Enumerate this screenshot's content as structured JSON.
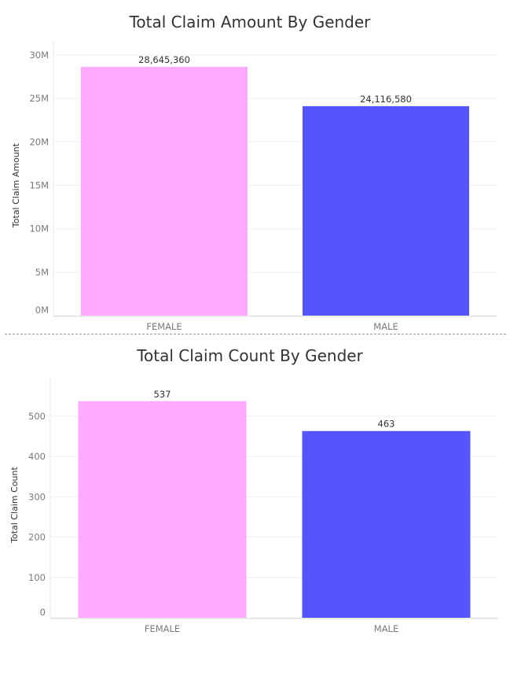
{
  "chart_data": [
    {
      "type": "bar",
      "title": "Total Claim Amount By Gender",
      "ylabel": "Total Claim Amount",
      "xlabel": "",
      "categories": [
        "FEMALE",
        "MALE"
      ],
      "values": [
        28645360,
        24116580
      ],
      "value_labels": [
        "28,645,360",
        "24,116,580"
      ],
      "colors": [
        "#ffaaff",
        "#5555ff"
      ],
      "ylim": [
        0,
        30000000
      ],
      "yticks": [
        0,
        5000000,
        10000000,
        15000000,
        20000000,
        25000000,
        30000000
      ],
      "ytick_labels": [
        "0M",
        "5M",
        "10M",
        "15M",
        "20M",
        "25M",
        "30M"
      ],
      "grid": true,
      "legend": "none"
    },
    {
      "type": "bar",
      "title": "Total Claim Count By Gender",
      "ylabel": "Total Claim Count",
      "xlabel": "",
      "categories": [
        "FEMALE",
        "MALE"
      ],
      "values": [
        537,
        463
      ],
      "value_labels": [
        "537",
        "463"
      ],
      "colors": [
        "#ffaaff",
        "#5555ff"
      ],
      "ylim": [
        0,
        560
      ],
      "yticks": [
        0,
        100,
        200,
        300,
        400,
        500
      ],
      "ytick_labels": [
        "0",
        "100",
        "200",
        "300",
        "400",
        "500"
      ],
      "grid": true,
      "legend": "none"
    }
  ]
}
